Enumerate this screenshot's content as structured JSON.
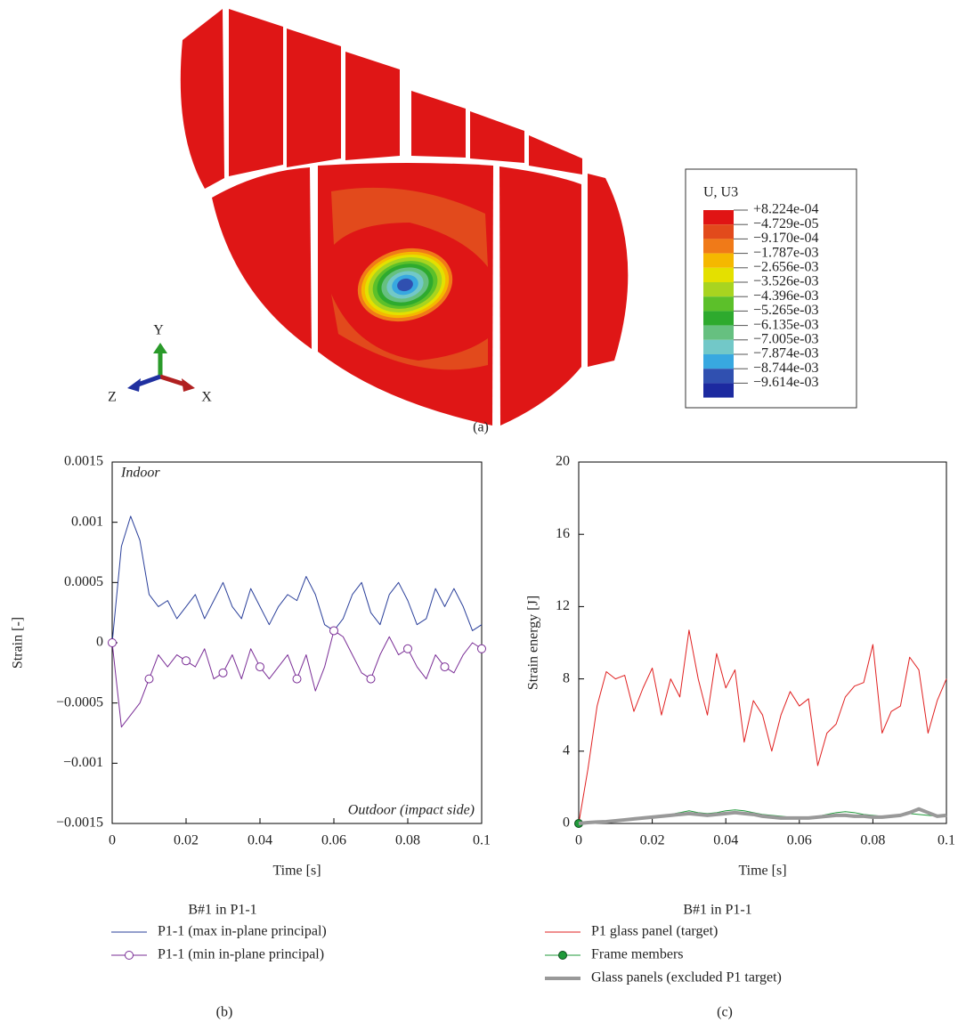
{
  "contour": {
    "title": "U, U3",
    "levels": [
      {
        "value": 0.0008224,
        "label": "+8.224e-04"
      },
      {
        "value": -4.729e-05,
        "label": "−4.729e-05"
      },
      {
        "value": -0.000917,
        "label": "−9.170e-04"
      },
      {
        "value": -0.001787,
        "label": "−1.787e-03"
      },
      {
        "value": -0.002656,
        "label": "−2.656e-03"
      },
      {
        "value": -0.003526,
        "label": "−3.526e-03"
      },
      {
        "value": -0.004396,
        "label": "−4.396e-03"
      },
      {
        "value": -0.005265,
        "label": "−5.265e-03"
      },
      {
        "value": -0.006135,
        "label": "−6.135e-03"
      },
      {
        "value": -0.007005,
        "label": "−7.005e-03"
      },
      {
        "value": -0.007874,
        "label": "−7.874e-03"
      },
      {
        "value": -0.008744,
        "label": "−8.744e-03"
      },
      {
        "value": -0.009614,
        "label": "−9.614e-03"
      }
    ],
    "colors": [
      "#e01414",
      "#e24a1c",
      "#f07a18",
      "#f5b800",
      "#e4e000",
      "#a8d420",
      "#5cc02a",
      "#2eaa2e",
      "#66c080",
      "#72c8c8",
      "#38a8e0",
      "#3050b0",
      "#1c2aa0"
    ],
    "axes": [
      "Y",
      "Z",
      "X"
    ],
    "caption": "(a)"
  },
  "chart_data": [
    {
      "type": "line",
      "caption": "(b)",
      "xlabel": "Time [s]",
      "ylabel": "Strain [-]",
      "annotations": [
        "Indoor",
        "Outdoor (impact side)"
      ],
      "legend_title": "B#1 in P1-1",
      "xlim": [
        0,
        0.1
      ],
      "xticks": [
        0,
        0.02,
        0.04,
        0.06,
        0.08,
        0.1
      ],
      "ylim": [
        -0.0015,
        0.0015
      ],
      "yticks": [
        {
          "value": -0.0015,
          "label": "−0.0015"
        },
        {
          "value": -0.001,
          "label": "−0.001"
        },
        {
          "value": -0.0005,
          "label": "−0.0005"
        },
        0,
        0.0005,
        0.001,
        0.0015
      ],
      "x": [
        0,
        0.0025,
        0.005,
        0.0075,
        0.01,
        0.0125,
        0.015,
        0.0175,
        0.02,
        0.0225,
        0.025,
        0.0275,
        0.03,
        0.0325,
        0.035,
        0.0375,
        0.04,
        0.0425,
        0.045,
        0.0475,
        0.05,
        0.0525,
        0.055,
        0.0575,
        0.06,
        0.0625,
        0.065,
        0.0675,
        0.07,
        0.0725,
        0.075,
        0.0775,
        0.08,
        0.0825,
        0.085,
        0.0875,
        0.09,
        0.0925,
        0.095,
        0.0975,
        0.1
      ],
      "series": [
        {
          "name": "P1-1 (max in-plane principal)",
          "color": "#2a3f9a",
          "width": 1,
          "values": [
            0,
            0.0008,
            0.00105,
            0.00085,
            0.0004,
            0.0003,
            0.00035,
            0.0002,
            0.0003,
            0.0004,
            0.0002,
            0.00035,
            0.0005,
            0.0003,
            0.0002,
            0.00045,
            0.0003,
            0.00015,
            0.0003,
            0.0004,
            0.00035,
            0.00055,
            0.0004,
            0.00015,
            0.0001,
            0.0002,
            0.0004,
            0.0005,
            0.00025,
            0.00015,
            0.0004,
            0.0005,
            0.00035,
            0.00015,
            0.0002,
            0.00045,
            0.0003,
            0.00045,
            0.0003,
            0.0001,
            0.00015
          ]
        },
        {
          "name": "P1-1 (min in-plane principal)",
          "color": "#7a2e96",
          "width": 1,
          "marker": "circle",
          "markevery": 4,
          "values": [
            0,
            -0.0007,
            -0.0006,
            -0.0005,
            -0.0003,
            -0.0001,
            -0.0002,
            -0.0001,
            -0.00015,
            -0.0002,
            -5e-05,
            -0.0003,
            -0.00025,
            -0.0001,
            -0.0003,
            -5e-05,
            -0.0002,
            -0.0003,
            -0.0002,
            -0.0001,
            -0.0003,
            -0.0001,
            -0.0004,
            -0.0002,
            0.0001,
            5e-05,
            -0.0001,
            -0.00025,
            -0.0003,
            -0.0001,
            5e-05,
            -0.0001,
            -5e-05,
            -0.0002,
            -0.0003,
            -0.0001,
            -0.0002,
            -0.00025,
            -0.0001,
            0,
            -5e-05
          ]
        }
      ]
    },
    {
      "type": "line",
      "caption": "(c)",
      "xlabel": "Time [s]",
      "ylabel": "Strain energy [J]",
      "legend_title": "B#1 in P1-1",
      "xlim": [
        0,
        0.1
      ],
      "xticks": [
        0,
        0.02,
        0.04,
        0.06,
        0.08,
        0.1
      ],
      "ylim": [
        0,
        20
      ],
      "yticks": [
        0,
        4,
        8,
        12,
        16,
        20
      ],
      "x": [
        0,
        0.0025,
        0.005,
        0.0075,
        0.01,
        0.0125,
        0.015,
        0.0175,
        0.02,
        0.0225,
        0.025,
        0.0275,
        0.03,
        0.0325,
        0.035,
        0.0375,
        0.04,
        0.0425,
        0.045,
        0.0475,
        0.05,
        0.0525,
        0.055,
        0.0575,
        0.06,
        0.0625,
        0.065,
        0.0675,
        0.07,
        0.0725,
        0.075,
        0.0775,
        0.08,
        0.0825,
        0.085,
        0.0875,
        0.09,
        0.0925,
        0.095,
        0.0975,
        0.1
      ],
      "series": [
        {
          "name": "P1 glass panel (target)",
          "color": "#e02020",
          "width": 1,
          "values": [
            0,
            3,
            6.5,
            8.4,
            8,
            8.2,
            6.2,
            7.5,
            8.6,
            6,
            8,
            7,
            10.7,
            8,
            6,
            9.4,
            7.5,
            8.5,
            4.5,
            6.8,
            6,
            4,
            6,
            7.3,
            6.5,
            6.9,
            3.2,
            5,
            5.5,
            7,
            7.6,
            7.8,
            9.9,
            5,
            6.2,
            6.5,
            9.2,
            8.5,
            5,
            6.8,
            8
          ]
        },
        {
          "name": "Frame members",
          "color": "#1f9a3a",
          "width": 1,
          "marker": "circle",
          "markevery": 100,
          "values": [
            0,
            0.05,
            0.1,
            0.15,
            0.2,
            0.25,
            0.3,
            0.35,
            0.4,
            0.45,
            0.5,
            0.6,
            0.7,
            0.6,
            0.55,
            0.6,
            0.7,
            0.75,
            0.7,
            0.6,
            0.5,
            0.45,
            0.4,
            0.35,
            0.3,
            0.35,
            0.4,
            0.5,
            0.6,
            0.65,
            0.6,
            0.5,
            0.45,
            0.4,
            0.45,
            0.5,
            0.55,
            0.5,
            0.45,
            0.4,
            0.45
          ]
        },
        {
          "name": "Glass panels (excluded P1 target)",
          "color": "#999999",
          "width": 4,
          "values": [
            0,
            0.05,
            0.08,
            0.1,
            0.15,
            0.2,
            0.25,
            0.3,
            0.35,
            0.4,
            0.45,
            0.5,
            0.55,
            0.5,
            0.45,
            0.5,
            0.55,
            0.6,
            0.55,
            0.5,
            0.4,
            0.35,
            0.3,
            0.3,
            0.3,
            0.3,
            0.35,
            0.4,
            0.45,
            0.45,
            0.4,
            0.4,
            0.35,
            0.35,
            0.4,
            0.45,
            0.6,
            0.8,
            0.6,
            0.4,
            0.45
          ]
        }
      ]
    }
  ]
}
